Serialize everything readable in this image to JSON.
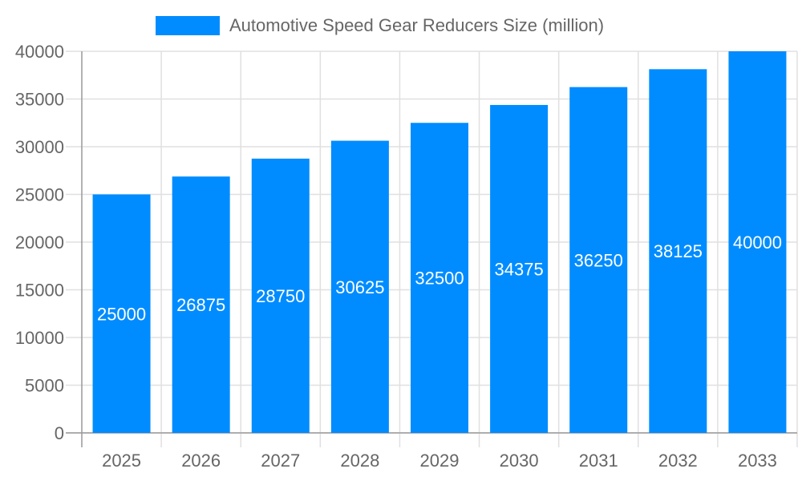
{
  "chart_data": {
    "type": "bar",
    "title": "",
    "xlabel": "",
    "ylabel": "",
    "categories": [
      "2025",
      "2026",
      "2027",
      "2028",
      "2029",
      "2030",
      "2031",
      "2032",
      "2033"
    ],
    "series": [
      {
        "name": "Automotive Speed Gear Reducers Size (million)",
        "values": [
          25000,
          26875,
          28750,
          30625,
          32500,
          34375,
          36250,
          38125,
          40000
        ],
        "color": "#008cff"
      }
    ],
    "ylim": [
      0,
      40000
    ],
    "yticks": [
      "0",
      "5000",
      "10000",
      "15000",
      "20000",
      "25000",
      "30000",
      "35000",
      "40000"
    ],
    "grid": true,
    "legend": "top-center",
    "data_labels": true
  }
}
